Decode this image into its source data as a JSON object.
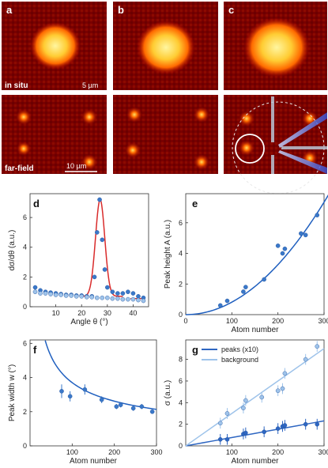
{
  "panels": {
    "a": {
      "letter": "a",
      "in_situ_label": "in situ",
      "scalebar_top": "5 µm",
      "far_field_label": "far-field",
      "scalebar_bottom": "10 µm"
    },
    "b": {
      "letter": "b"
    },
    "c": {
      "letter": "c"
    }
  },
  "chart_data": [
    {
      "panel": "d",
      "type": "scatter",
      "xlabel": "Angle θ (°)",
      "ylabel": "dσ/dθ (a.u.)",
      "xlim": [
        0,
        46
      ],
      "ylim": [
        0,
        7.6
      ],
      "xticks": [
        10,
        20,
        30,
        40
      ],
      "yticks": [
        0,
        2,
        4,
        6
      ],
      "series": [
        {
          "color": "#3a78c9",
          "x": [
            2,
            4,
            6,
            8,
            10,
            12,
            14,
            16,
            18,
            20,
            22,
            24,
            25,
            26,
            27,
            28,
            29,
            30,
            32,
            34,
            36,
            38,
            40,
            42,
            44
          ],
          "y": [
            1.3,
            1.1,
            1.0,
            0.95,
            0.9,
            0.85,
            0.8,
            0.8,
            0.75,
            0.75,
            0.7,
            0.7,
            2.0,
            5.0,
            7.2,
            4.5,
            2.5,
            1.3,
            1.0,
            0.9,
            0.9,
            1.0,
            0.9,
            0.7,
            0.6
          ]
        },
        {
          "color": "#9ec3ea",
          "x": [
            2,
            4,
            6,
            8,
            10,
            12,
            14,
            16,
            18,
            20,
            22,
            24,
            26,
            28,
            30,
            32,
            34,
            36,
            38,
            40,
            42,
            44
          ],
          "y": [
            1.0,
            0.9,
            0.9,
            0.85,
            0.8,
            0.8,
            0.75,
            0.75,
            0.7,
            0.7,
            0.65,
            0.65,
            0.6,
            0.6,
            0.6,
            0.55,
            0.55,
            0.5,
            0.5,
            0.5,
            0.45,
            0.4
          ]
        }
      ],
      "fit_color": "#d92b2b",
      "fit_center": 27.2,
      "fit_sigma": 1.8,
      "fit_height": 7.2,
      "fit_range": [
        20,
        36
      ],
      "side_fit_color": "#d92b2b",
      "side_fit_range": [
        39,
        44
      ],
      "side_fit_y": 0.55
    },
    {
      "panel": "e",
      "type": "scatter",
      "xlabel": "Atom number",
      "ylabel": "Peak height A (a.u.)",
      "xlim": [
        0,
        300
      ],
      "ylim": [
        0,
        7.9
      ],
      "xticks": [
        0,
        100,
        200,
        300
      ],
      "yticks": [
        0,
        2,
        4,
        6
      ],
      "series": [
        {
          "color": "#3a78c9",
          "x": [
            75,
            90,
            125,
            130,
            170,
            200,
            210,
            215,
            250,
            260,
            285
          ],
          "y": [
            0.6,
            0.9,
            1.5,
            1.8,
            2.3,
            4.5,
            4.0,
            4.3,
            5.3,
            5.2,
            6.5
          ]
        }
      ],
      "fit_color": "#1f5fbf",
      "fit": "quadratic",
      "fit_coef": 8.16e-05
    },
    {
      "panel": "f",
      "type": "scatter",
      "xlabel": "Atom number",
      "ylabel": "Peak width w (°)",
      "xlim": [
        0,
        300
      ],
      "ylim": [
        0,
        6.2
      ],
      "xticks": [
        100,
        200,
        300
      ],
      "yticks": [
        0,
        2,
        4,
        6
      ],
      "series": [
        {
          "color": "#3a78c9",
          "x": [
            75,
            95,
            130,
            170,
            205,
            215,
            245,
            265,
            290
          ],
          "y": [
            3.2,
            2.9,
            3.3,
            2.7,
            2.3,
            2.4,
            2.2,
            2.3,
            2.0
          ]
        }
      ],
      "errors": [
        0.4,
        0.3,
        0.3,
        0.2,
        0.15,
        0.15,
        0.15,
        0.15,
        0.1
      ],
      "fit_color": "#1f5fbf",
      "fit": "inverse_sqrt",
      "fit_coef": 37
    },
    {
      "panel": "g",
      "type": "scatter",
      "xlabel": "Atom number",
      "ylabel": "σ (a.u.)",
      "xlim": [
        0,
        300
      ],
      "ylim": [
        0,
        9.8
      ],
      "xticks": [
        100,
        200,
        300
      ],
      "yticks": [
        0,
        2,
        4,
        6,
        8
      ],
      "series": [
        {
          "name": "peaks (x10)",
          "color": "#2e66c2",
          "x": [
            75,
            90,
            125,
            130,
            170,
            200,
            210,
            215,
            260,
            285
          ],
          "y": [
            0.6,
            0.6,
            1.1,
            1.2,
            1.3,
            1.6,
            1.8,
            1.9,
            2.0,
            2.0
          ],
          "slope": 0.0077
        },
        {
          "name": "background",
          "color": "#9ec3ea",
          "x": [
            75,
            90,
            125,
            130,
            165,
            200,
            210,
            215,
            260,
            285
          ],
          "y": [
            2.1,
            3.0,
            3.5,
            4.2,
            4.5,
            5.1,
            5.3,
            6.7,
            8.0,
            9.2
          ],
          "slope": 0.03
        }
      ],
      "errors": [
        0.5,
        0.5,
        0.5,
        0.5,
        0.5,
        0.5,
        0.5,
        0.5,
        0.5,
        0.5
      ],
      "legend_position": "top-left"
    }
  ]
}
